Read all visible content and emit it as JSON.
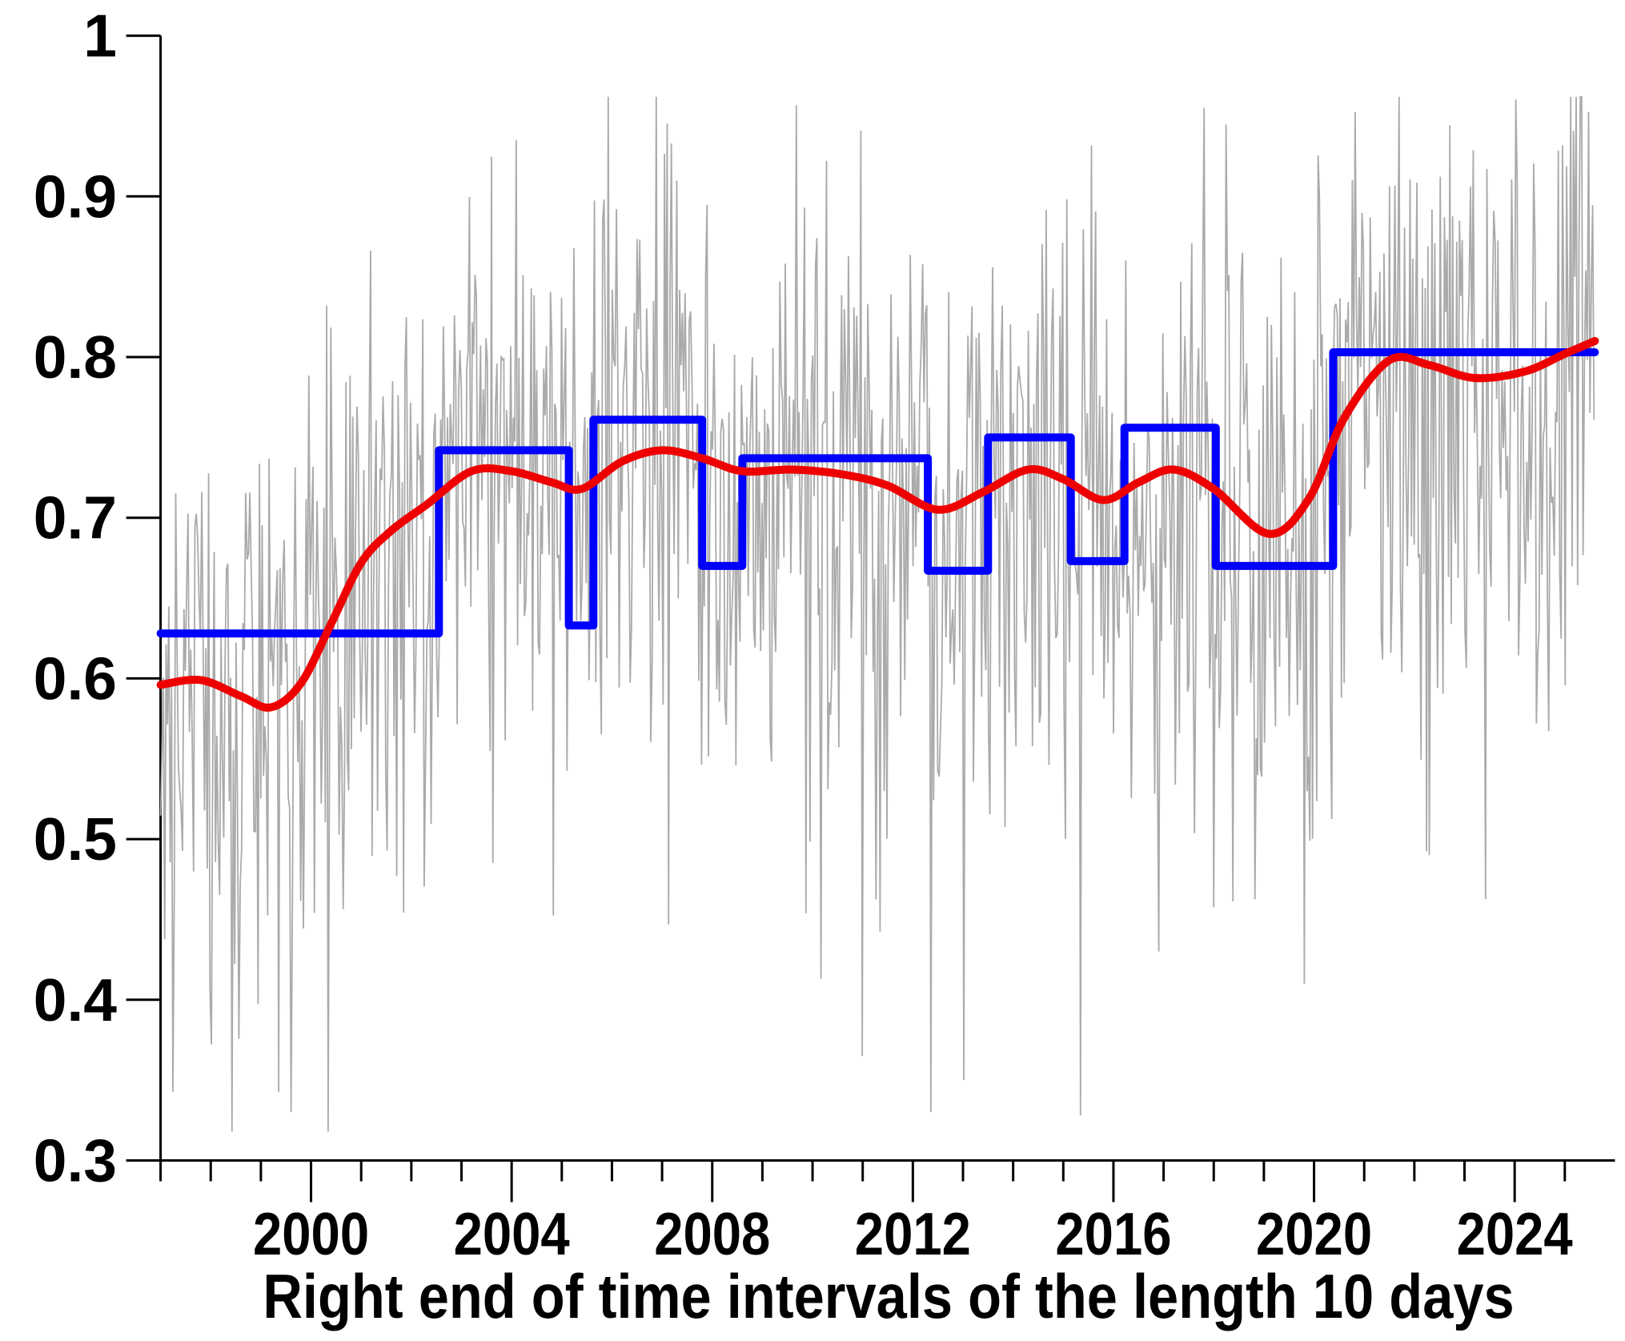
{
  "page": {
    "background": "#ffffff"
  },
  "chart_data": {
    "type": "line",
    "title": "",
    "xlabel": "Right end of time intervals of the length 10 days",
    "ylabel": "",
    "grid": false,
    "legend": false,
    "x_axis": {
      "min": 1997,
      "max": 2026,
      "minor_tick_step_years": 1,
      "major_ticks": [
        2000,
        2004,
        2008,
        2012,
        2016,
        2020,
        2024
      ],
      "tick_labels": [
        "2000",
        "2004",
        "2008",
        "2012",
        "2016",
        "2020",
        "2024"
      ]
    },
    "y_axis": {
      "min": 0.3,
      "max": 1.0,
      "ticks": [
        1.0,
        0.9,
        0.8,
        0.7,
        0.6,
        0.5,
        0.4,
        0.3
      ],
      "tick_labels": [
        "1",
        "0.9",
        "0.8",
        "0.7",
        "0.6",
        "0.5",
        "0.4",
        "0.3"
      ]
    },
    "series": [
      {
        "name": "raw-interval-proportions",
        "kind": "noisy",
        "color": "#aaaaaa",
        "stroke_width": 1.8,
        "start_year": 1997.0,
        "end_year": 2025.6,
        "interval_days": 10,
        "sd": 0.088,
        "neg_scale": 1.25,
        "outlier_prob": 0.008,
        "seed": 20240613,
        "clip_min": 0.318,
        "clip_max": 0.962,
        "forced_points": [
          [
            1999.6,
            0.33
          ],
          [
            2011.0,
            0.365
          ],
          [
            2012.35,
            0.33
          ],
          [
            2015.35,
            0.328
          ],
          [
            2016.9,
            0.43
          ],
          [
            2017.8,
            0.955
          ],
          [
            2019.8,
            0.41
          ],
          [
            2022.3,
            0.49
          ]
        ]
      },
      {
        "name": "smoothed-trend",
        "kind": "smooth",
        "color": "#ee0000",
        "stroke_width": 10,
        "points": [
          [
            1997.0,
            0.596
          ],
          [
            1997.8,
            0.599
          ],
          [
            1998.6,
            0.589
          ],
          [
            1999.2,
            0.582
          ],
          [
            1999.8,
            0.597
          ],
          [
            2000.4,
            0.634
          ],
          [
            2001.0,
            0.672
          ],
          [
            2001.6,
            0.692
          ],
          [
            2002.3,
            0.708
          ],
          [
            2003.2,
            0.729
          ],
          [
            2004.0,
            0.729
          ],
          [
            2004.8,
            0.722
          ],
          [
            2005.4,
            0.718
          ],
          [
            2006.2,
            0.735
          ],
          [
            2007.0,
            0.742
          ],
          [
            2007.8,
            0.737
          ],
          [
            2008.6,
            0.729
          ],
          [
            2009.6,
            0.73
          ],
          [
            2010.6,
            0.727
          ],
          [
            2011.5,
            0.72
          ],
          [
            2012.5,
            0.705
          ],
          [
            2013.4,
            0.716
          ],
          [
            2014.3,
            0.73
          ],
          [
            2015.0,
            0.724
          ],
          [
            2015.8,
            0.711
          ],
          [
            2016.5,
            0.722
          ],
          [
            2017.2,
            0.73
          ],
          [
            2018.0,
            0.718
          ],
          [
            2019.1,
            0.69
          ],
          [
            2019.9,
            0.712
          ],
          [
            2020.6,
            0.762
          ],
          [
            2021.5,
            0.798
          ],
          [
            2022.3,
            0.795
          ],
          [
            2023.2,
            0.787
          ],
          [
            2024.2,
            0.791
          ],
          [
            2025.0,
            0.802
          ],
          [
            2025.6,
            0.81
          ]
        ]
      },
      {
        "name": "step-fit",
        "kind": "step",
        "color": "#0000ff",
        "stroke_width": 10,
        "segments": [
          [
            1997.0,
            2002.55,
            0.628
          ],
          [
            2002.55,
            2005.14,
            0.742
          ],
          [
            2005.14,
            2005.63,
            0.633
          ],
          [
            2005.63,
            2007.8,
            0.761
          ],
          [
            2007.8,
            2008.6,
            0.67
          ],
          [
            2008.6,
            2012.3,
            0.737
          ],
          [
            2012.3,
            2013.5,
            0.667
          ],
          [
            2013.5,
            2015.15,
            0.75
          ],
          [
            2015.15,
            2016.22,
            0.673
          ],
          [
            2016.22,
            2018.04,
            0.756
          ],
          [
            2018.04,
            2020.38,
            0.67
          ],
          [
            2020.38,
            2025.6,
            0.803
          ]
        ]
      }
    ]
  }
}
